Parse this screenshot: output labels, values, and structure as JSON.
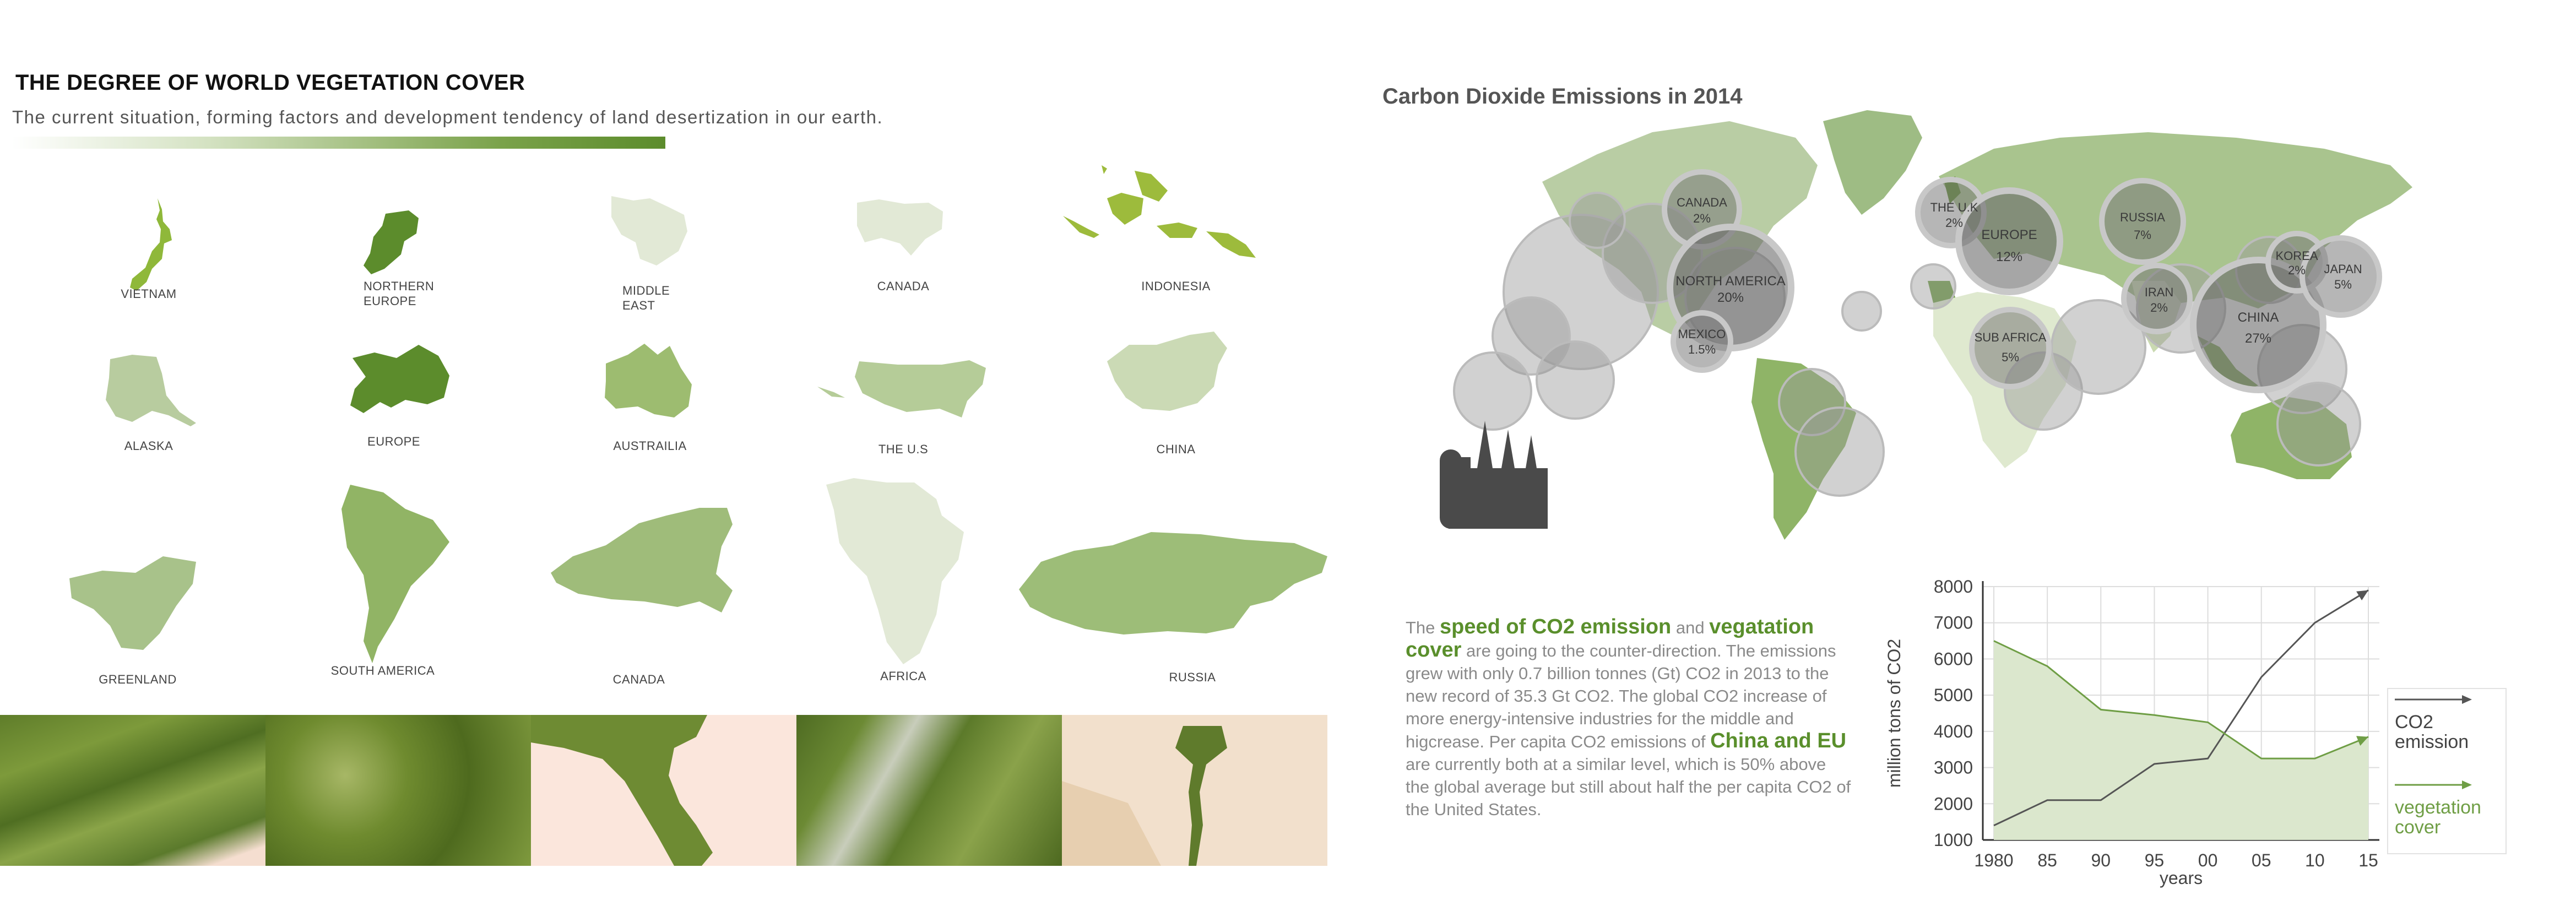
{
  "header": {
    "title": "THE DEGREE OF WORLD VEGETATION COVER",
    "subtitle": "The current situation, forming factors and development tendency of land desertization in our earth."
  },
  "maps": [
    {
      "label": "VIETNAM",
      "color": "#8fb83a"
    },
    {
      "label": "NORTHERN\nEUROPE",
      "color": "#5c8c2c"
    },
    {
      "label": "MIDDLE\nEAST",
      "color": "#e2e9d6"
    },
    {
      "label": "CANADA",
      "color": "#e2e9d6"
    },
    {
      "label": "INDONESIA",
      "color": "#9dbb3c"
    },
    {
      "label": "ALASKA",
      "color": "#b8cc9f"
    },
    {
      "label": "EUROPE",
      "color": "#5c8c2c"
    },
    {
      "label": "AUSTRAILIA",
      "color": "#9dbc70"
    },
    {
      "label": "THE U.S",
      "color": "#b5cc98"
    },
    {
      "label": "CHINA",
      "color": "#cbdab5"
    },
    {
      "label": "GREENLAND",
      "color": "#a8c28a"
    },
    {
      "label": "SOUTH AMERICA",
      "color": "#91b465"
    },
    {
      "label": "CANADA",
      "color": "#9fbc7a"
    },
    {
      "label": "AFRICA",
      "color": "#e2e9d6"
    },
    {
      "label": "RUSSIA",
      "color": "#9dbd78"
    }
  ],
  "co2_map": {
    "title": "Carbon Dioxide Emissions in 2014",
    "bubbles": [
      {
        "name": "CANADA",
        "pct": "2%"
      },
      {
        "name": "NORTH AMERICA",
        "pct": "20%"
      },
      {
        "name": "MEXICO",
        "pct": "1.5%"
      },
      {
        "name": "THE U.K",
        "pct": "2%"
      },
      {
        "name": "EUROPE",
        "pct": "12%"
      },
      {
        "name": "RUSSIA",
        "pct": "7%"
      },
      {
        "name": "IRAN",
        "pct": "2%"
      },
      {
        "name": "SUB AFRICA",
        "pct": "5%"
      },
      {
        "name": "CHINA",
        "pct": "27%"
      },
      {
        "name": "KOREA",
        "pct": "2%"
      },
      {
        "name": "JAPAN",
        "pct": "5%"
      }
    ]
  },
  "description": {
    "p1": "The ",
    "h1": "speed of CO2 emission",
    "p2": " and ",
    "h2": "vegatation cover",
    "p3": " are going to the counter-direction. The emissions grew with only 0.7 billion tonnes (Gt) CO2 in 2013 to the new record of 35.3 Gt CO2. The global CO2 increase of more energy-intensive industries for the middle and higcrease. Per capita CO2 emissions of ",
    "h3": "China and EU",
    "p4": " are currently both at a similar level, which is 50% above the global average but still about half the per capita CO2 of the United States."
  },
  "chart_data": {
    "type": "line",
    "xlabel": "years",
    "ylabel": "million tons of CO2",
    "x": [
      1980,
      1985,
      1990,
      1995,
      2000,
      2005,
      2010,
      2015
    ],
    "tick_labels_x": [
      "1980",
      "85",
      "90",
      "95",
      "00",
      "05",
      "10",
      "15"
    ],
    "ylim": [
      1000,
      8000
    ],
    "yticks": [
      1000,
      2000,
      3000,
      4000,
      5000,
      6000,
      7000,
      8000
    ],
    "series": [
      {
        "name": "CO2\nemission",
        "color": "#555555",
        "values": [
          1400,
          2100,
          2100,
          3100,
          3250,
          5500,
          7000,
          7900
        ]
      },
      {
        "name": "vegetation\ncover",
        "color": "#6f9e45",
        "values": [
          6500,
          5800,
          4600,
          4450,
          4250,
          3250,
          3250,
          3850
        ]
      }
    ],
    "grid": true,
    "legend": "right"
  }
}
